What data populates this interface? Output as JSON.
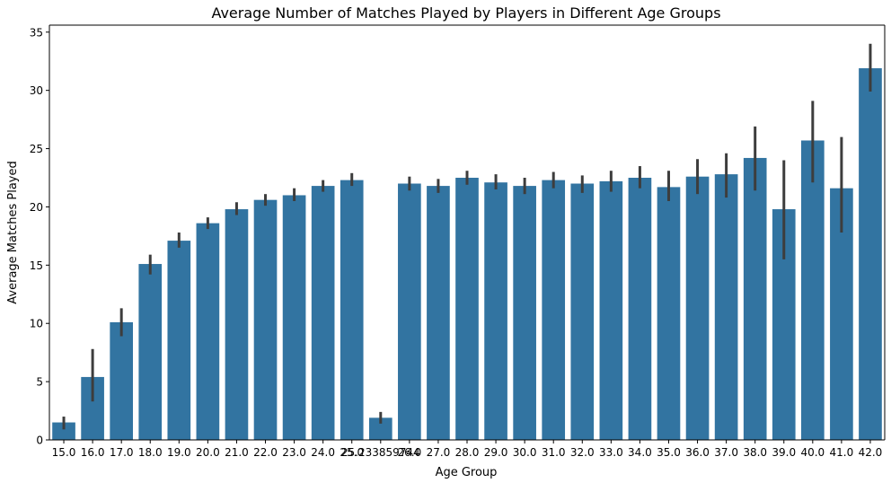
{
  "chart_data": {
    "type": "bar",
    "title": "Average Number of Matches Played by Players in Different Age Groups",
    "xlabel": "Age Group",
    "ylabel": "Average Matches Played",
    "categories": [
      "15.0",
      "16.0",
      "17.0",
      "18.0",
      "19.0",
      "20.0",
      "21.0",
      "22.0",
      "23.0",
      "24.0",
      "25.0",
      "25.233859744",
      "26.0",
      "27.0",
      "28.0",
      "29.0",
      "30.0",
      "31.0",
      "32.0",
      "33.0",
      "34.0",
      "35.0",
      "36.0",
      "37.0",
      "38.0",
      "39.0",
      "40.0",
      "41.0",
      "42.0"
    ],
    "tick_labels": [
      "15.0",
      "16.0",
      "17.0",
      "18.0",
      "19.0",
      "20.0",
      "21.0",
      "22.0",
      "23.0",
      "24.0",
      "25.0",
      "25.233859744",
      "26.0",
      "27.0",
      "28.0",
      "29.0",
      "30.0",
      "31.0",
      "32.0",
      "33.0",
      "34.0",
      "35.0",
      "36.0",
      "37.0",
      "38.0",
      "39.0",
      "40.0",
      "41.0",
      "42.0"
    ],
    "values": [
      1.5,
      5.4,
      10.1,
      15.1,
      17.1,
      18.6,
      19.8,
      20.6,
      21.0,
      21.8,
      22.3,
      1.9,
      22.0,
      21.8,
      22.5,
      22.1,
      21.8,
      22.3,
      22.0,
      22.2,
      22.5,
      21.7,
      22.6,
      22.8,
      24.2,
      19.8,
      25.7,
      21.6,
      31.9
    ],
    "error_low": [
      0.9,
      3.3,
      8.9,
      14.2,
      16.5,
      18.1,
      19.3,
      20.1,
      20.5,
      21.3,
      21.8,
      1.4,
      21.4,
      21.2,
      21.9,
      21.5,
      21.1,
      21.6,
      21.2,
      21.3,
      21.6,
      20.5,
      21.1,
      20.8,
      21.4,
      15.5,
      22.1,
      17.8,
      29.9
    ],
    "error_high": [
      2.0,
      7.8,
      11.3,
      15.9,
      17.8,
      19.1,
      20.4,
      21.1,
      21.6,
      22.3,
      22.9,
      2.4,
      22.6,
      22.4,
      23.1,
      22.8,
      22.5,
      23.0,
      22.7,
      23.1,
      23.5,
      23.1,
      24.1,
      24.6,
      26.9,
      24.0,
      29.1,
      26.0,
      34.0
    ],
    "yticks": [
      0,
      5,
      10,
      15,
      20,
      25,
      30,
      35
    ],
    "ylim": [
      0,
      35.6
    ],
    "bar_color": "#3274a1",
    "error_color": "#3d3d3d",
    "grid": false
  }
}
